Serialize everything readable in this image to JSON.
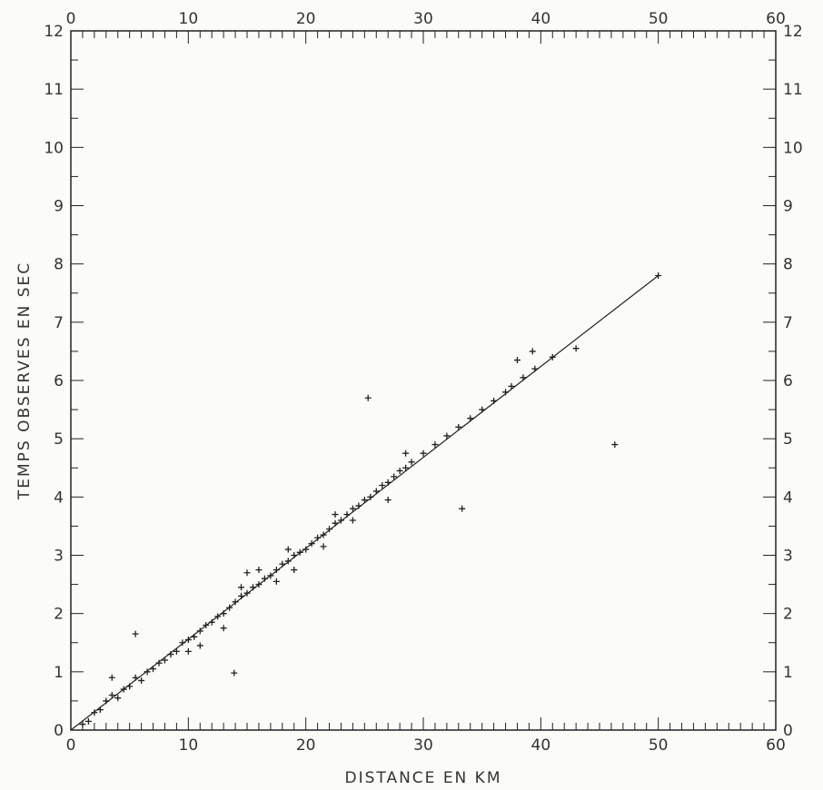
{
  "chart_data": {
    "type": "scatter",
    "title": "",
    "xlabel": "DISTANCE EN KM",
    "ylabel": "TEMPS OBSERVES EN SEC",
    "xlim": [
      0,
      60
    ],
    "ylim": [
      0,
      12
    ],
    "x_ticks": [
      0,
      10,
      20,
      30,
      40,
      50,
      60
    ],
    "y_ticks": [
      0,
      1,
      2,
      3,
      4,
      5,
      6,
      7,
      8,
      9,
      10,
      11,
      12
    ],
    "x_minor_step": 1,
    "y_minor_step": 0.5,
    "grid": false,
    "axes_on_all_sides": true,
    "marker": "+",
    "series": [
      {
        "kind": "points",
        "points": [
          [
            1,
            0.1
          ],
          [
            1.5,
            0.15
          ],
          [
            2,
            0.3
          ],
          [
            2.5,
            0.35
          ],
          [
            3,
            0.5
          ],
          [
            3.5,
            0.6
          ],
          [
            4,
            0.55
          ],
          [
            4.5,
            0.7
          ],
          [
            5,
            0.75
          ],
          [
            5.5,
            0.9
          ],
          [
            6,
            0.85
          ],
          [
            6.5,
            1.0
          ],
          [
            7,
            1.05
          ],
          [
            7.5,
            1.15
          ],
          [
            8,
            1.2
          ],
          [
            8.5,
            1.3
          ],
          [
            9,
            1.35
          ],
          [
            9.5,
            1.5
          ],
          [
            10,
            1.55
          ],
          [
            10.5,
            1.6
          ],
          [
            11,
            1.7
          ],
          [
            11.5,
            1.8
          ],
          [
            12,
            1.85
          ],
          [
            12.5,
            1.95
          ],
          [
            13,
            2.0
          ],
          [
            13.5,
            2.1
          ],
          [
            14,
            2.2
          ],
          [
            14.5,
            2.3
          ],
          [
            15,
            2.35
          ],
          [
            15.5,
            2.45
          ],
          [
            16,
            2.5
          ],
          [
            16.5,
            2.6
          ],
          [
            17,
            2.65
          ],
          [
            17.5,
            2.75
          ],
          [
            18,
            2.85
          ],
          [
            18.5,
            2.9
          ],
          [
            19,
            3.0
          ],
          [
            19.5,
            3.05
          ],
          [
            20,
            3.1
          ],
          [
            20.5,
            3.2
          ],
          [
            21,
            3.3
          ],
          [
            21.5,
            3.35
          ],
          [
            22,
            3.45
          ],
          [
            22.5,
            3.55
          ],
          [
            23,
            3.6
          ],
          [
            23.5,
            3.7
          ],
          [
            24,
            3.8
          ],
          [
            24.5,
            3.85
          ],
          [
            25,
            3.95
          ],
          [
            25.5,
            4.0
          ],
          [
            26,
            4.1
          ],
          [
            26.5,
            4.2
          ],
          [
            27,
            4.25
          ],
          [
            27.5,
            4.35
          ],
          [
            28,
            4.45
          ],
          [
            28.5,
            4.5
          ],
          [
            29,
            4.6
          ],
          [
            30,
            4.75
          ],
          [
            31,
            4.9
          ],
          [
            32,
            5.05
          ],
          [
            33,
            5.2
          ],
          [
            34,
            5.35
          ],
          [
            35,
            5.5
          ],
          [
            36,
            5.65
          ],
          [
            37,
            5.8
          ],
          [
            37.5,
            5.9
          ],
          [
            38.5,
            6.05
          ],
          [
            39.5,
            6.2
          ],
          [
            41,
            6.4
          ],
          [
            43,
            6.55
          ],
          [
            50,
            7.8
          ],
          [
            3.5,
            0.9
          ],
          [
            5.5,
            1.65
          ],
          [
            10,
            1.35
          ],
          [
            11,
            1.45
          ],
          [
            13,
            1.75
          ],
          [
            14.5,
            2.45
          ],
          [
            13.9,
            0.98
          ],
          [
            16,
            2.75
          ],
          [
            17.5,
            2.55
          ],
          [
            18.5,
            3.1
          ],
          [
            21.5,
            3.15
          ],
          [
            24,
            3.6
          ],
          [
            25.3,
            5.7
          ],
          [
            27,
            3.95
          ],
          [
            28.5,
            4.75
          ],
          [
            33.3,
            3.8
          ],
          [
            38,
            6.35
          ],
          [
            39.3,
            6.5
          ],
          [
            46.3,
            4.9
          ],
          [
            15,
            2.7
          ],
          [
            19,
            2.75
          ],
          [
            22.5,
            3.7
          ]
        ]
      },
      {
        "kind": "line",
        "points": [
          [
            0,
            0
          ],
          [
            50,
            7.8
          ]
        ]
      }
    ]
  }
}
